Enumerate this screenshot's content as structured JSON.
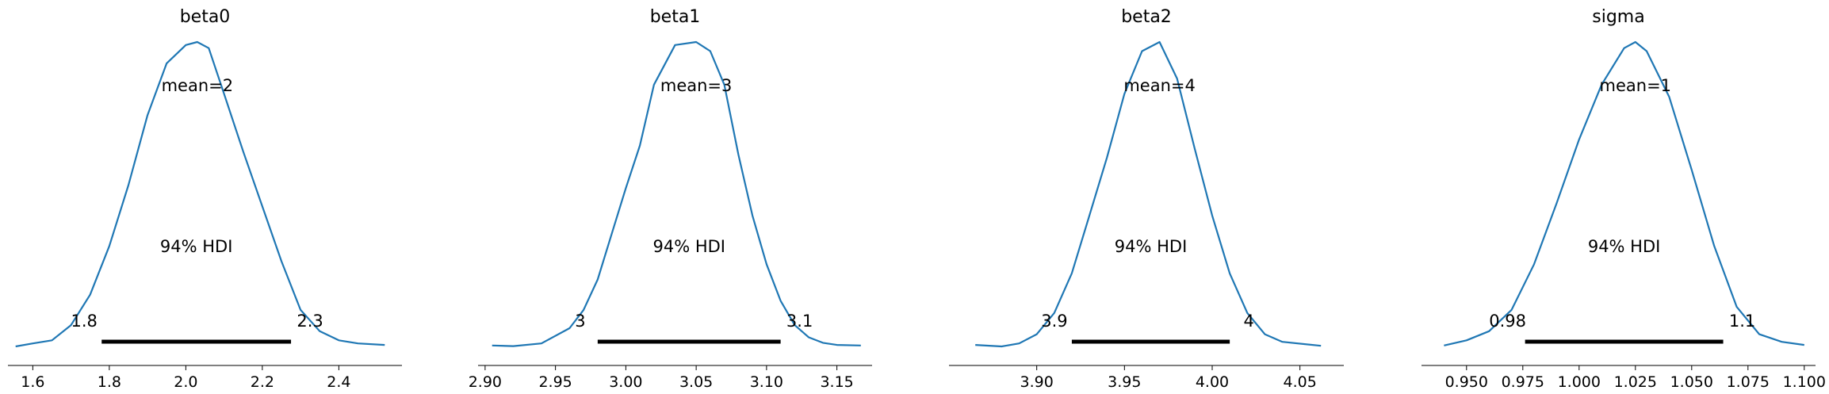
{
  "chart_data": [
    {
      "type": "line",
      "title": "beta0",
      "xlim": [
        1.535,
        2.565
      ],
      "xticks": [
        1.6,
        1.8,
        2.0,
        2.2,
        2.4
      ],
      "xtick_labels": [
        "1.6",
        "1.8",
        "2.0",
        "2.2",
        "2.4"
      ],
      "mean_label": "mean=2",
      "hdi_label": "94% HDI",
      "hdi": [
        1.78,
        2.275
      ],
      "hdi_low_label": "1.8",
      "hdi_high_label": "2.3",
      "density_x": [
        1.555,
        1.6,
        1.65,
        1.7,
        1.75,
        1.8,
        1.85,
        1.9,
        1.95,
        2.0,
        2.03,
        2.06,
        2.1,
        2.15,
        2.2,
        2.25,
        2.3,
        2.35,
        2.4,
        2.45,
        2.52
      ],
      "density_y": [
        0.0,
        0.01,
        0.02,
        0.07,
        0.17,
        0.33,
        0.53,
        0.76,
        0.93,
        0.99,
        1.0,
        0.98,
        0.83,
        0.64,
        0.46,
        0.28,
        0.12,
        0.05,
        0.02,
        0.01,
        0.005
      ]
    },
    {
      "type": "line",
      "title": "beta1",
      "xlim": [
        2.895,
        3.175
      ],
      "xticks": [
        2.9,
        2.95,
        3.0,
        3.05,
        3.1,
        3.15
      ],
      "xtick_labels": [
        "2.90",
        "2.95",
        "3.00",
        "3.05",
        "3.10",
        "3.15"
      ],
      "mean_label": "mean=3",
      "hdi_label": "94% HDI",
      "hdi": [
        2.98,
        3.11
      ],
      "hdi_low_label": "3",
      "hdi_high_label": "3.1",
      "density_x": [
        2.905,
        2.92,
        2.94,
        2.96,
        2.97,
        2.98,
        2.99,
        3.0,
        3.01,
        3.02,
        3.035,
        3.05,
        3.06,
        3.07,
        3.08,
        3.09,
        3.1,
        3.11,
        3.12,
        3.13,
        3.14,
        3.15,
        3.167
      ],
      "density_y": [
        0.003,
        0.001,
        0.01,
        0.06,
        0.12,
        0.22,
        0.37,
        0.52,
        0.66,
        0.86,
        0.99,
        1.0,
        0.97,
        0.86,
        0.63,
        0.43,
        0.27,
        0.15,
        0.07,
        0.03,
        0.012,
        0.005,
        0.003
      ]
    },
    {
      "type": "line",
      "title": "beta2",
      "xlim": [
        3.85,
        4.075
      ],
      "xticks": [
        3.9,
        3.95,
        4.0,
        4.05
      ],
      "xtick_labels": [
        "3.90",
        "3.95",
        "4.00",
        "4.05"
      ],
      "mean_label": "mean=4",
      "hdi_label": "94% HDI",
      "hdi": [
        3.92,
        4.01
      ],
      "hdi_low_label": "3.9",
      "hdi_high_label": "4",
      "density_x": [
        3.865,
        3.88,
        3.89,
        3.9,
        3.91,
        3.92,
        3.93,
        3.94,
        3.95,
        3.96,
        3.97,
        3.98,
        3.99,
        4.0,
        4.01,
        4.02,
        4.03,
        4.04,
        4.062
      ],
      "density_y": [
        0.005,
        0.0,
        0.01,
        0.04,
        0.11,
        0.24,
        0.43,
        0.62,
        0.83,
        0.97,
        1.0,
        0.88,
        0.65,
        0.43,
        0.24,
        0.11,
        0.04,
        0.015,
        0.002
      ]
    },
    {
      "type": "line",
      "title": "sigma",
      "xlim": [
        0.93,
        1.105
      ],
      "xticks": [
        0.95,
        0.975,
        1.0,
        1.025,
        1.05,
        1.075,
        1.1
      ],
      "xtick_labels": [
        "0.950",
        "0.975",
        "1.000",
        "1.025",
        "1.050",
        "1.075",
        "1.100"
      ],
      "mean_label": "mean=1",
      "hdi_label": "94% HDI",
      "hdi": [
        0.976,
        1.064
      ],
      "hdi_low_label": "0.98",
      "hdi_high_label": "1.1",
      "density_x": [
        0.94,
        0.95,
        0.96,
        0.97,
        0.98,
        0.99,
        1.0,
        1.01,
        1.02,
        1.025,
        1.03,
        1.04,
        1.05,
        1.06,
        1.07,
        1.08,
        1.09,
        1.1
      ],
      "density_y": [
        0.003,
        0.02,
        0.05,
        0.12,
        0.27,
        0.47,
        0.68,
        0.86,
        0.98,
        1.0,
        0.97,
        0.82,
        0.58,
        0.33,
        0.13,
        0.04,
        0.015,
        0.005
      ]
    }
  ],
  "style": {
    "line_color": "#1f77b4",
    "hdi_color": "#000000",
    "axis_color": "#000000"
  }
}
